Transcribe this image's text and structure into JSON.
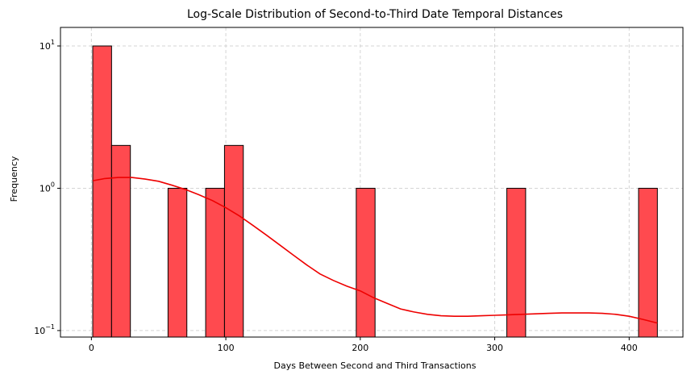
{
  "chart_data": {
    "type": "bar",
    "title": "Log-Scale Distribution of Second-to-Third Date Temporal Distances",
    "xlabel": "Days Between Second and Third Transactions",
    "ylabel": "Frequency",
    "xlim": [
      -23,
      440
    ],
    "ylim": [
      0.09,
      13.5
    ],
    "yscale": "log",
    "x_ticks": [
      0,
      100,
      200,
      300,
      400
    ],
    "y_ticks": [
      {
        "value": 0.1,
        "base": "10",
        "exp": "−1"
      },
      {
        "value": 1,
        "base": "10",
        "exp": "0"
      },
      {
        "value": 10,
        "base": "10",
        "exp": "1"
      }
    ],
    "grid": true,
    "bar_color": "#ff4a4f",
    "edge_color": "#000000",
    "line_color": "#ee0000",
    "bins": [
      {
        "x0": 1,
        "x1": 15,
        "count": 10
      },
      {
        "x0": 15,
        "x1": 29,
        "count": 2
      },
      {
        "x0": 57,
        "x1": 71,
        "count": 1
      },
      {
        "x0": 85,
        "x1": 99,
        "count": 1
      },
      {
        "x0": 99,
        "x1": 113,
        "count": 2
      },
      {
        "x0": 197,
        "x1": 211,
        "count": 1
      },
      {
        "x0": 309,
        "x1": 323,
        "count": 1
      },
      {
        "x0": 407,
        "x1": 421,
        "count": 1
      }
    ],
    "kde": {
      "x": [
        1,
        10,
        20,
        30,
        40,
        50,
        60,
        70,
        80,
        90,
        100,
        110,
        120,
        130,
        140,
        150,
        160,
        170,
        180,
        190,
        200,
        210,
        220,
        230,
        240,
        250,
        260,
        270,
        280,
        290,
        300,
        310,
        320,
        330,
        340,
        350,
        360,
        370,
        380,
        390,
        400,
        410,
        421
      ],
      "y": [
        1.13,
        1.17,
        1.19,
        1.19,
        1.16,
        1.12,
        1.05,
        0.98,
        0.9,
        0.82,
        0.73,
        0.64,
        0.55,
        0.47,
        0.4,
        0.34,
        0.29,
        0.25,
        0.225,
        0.205,
        0.19,
        0.17,
        0.155,
        0.142,
        0.135,
        0.13,
        0.127,
        0.126,
        0.126,
        0.127,
        0.128,
        0.129,
        0.13,
        0.131,
        0.132,
        0.133,
        0.133,
        0.133,
        0.132,
        0.13,
        0.126,
        0.12,
        0.113
      ]
    }
  }
}
